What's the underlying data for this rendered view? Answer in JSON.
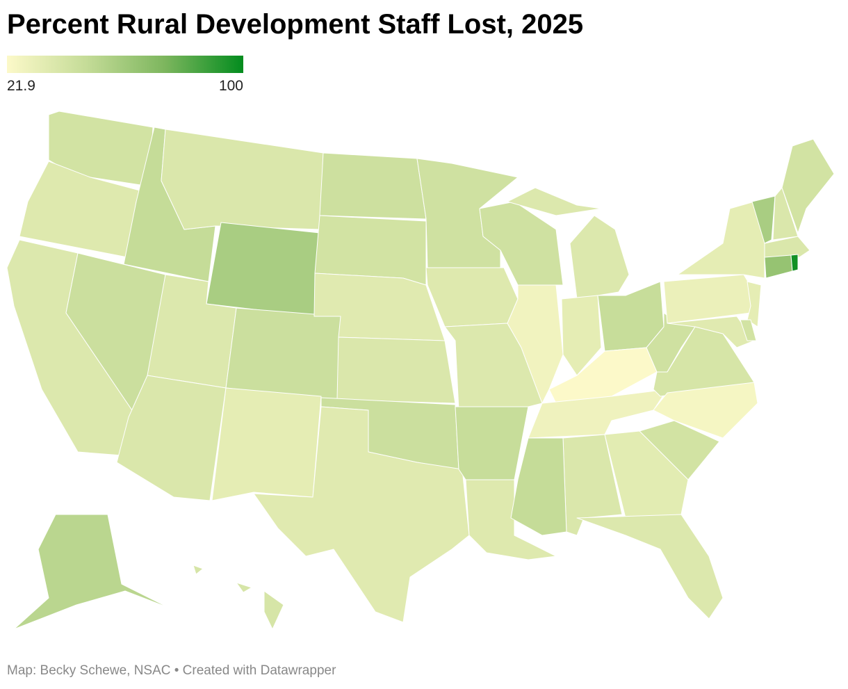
{
  "chart_data": {
    "type": "choropleth",
    "title": "Percent Rural Development Staff Lost, 2025",
    "colorbar": {
      "range": [
        21.9,
        100
      ],
      "colors": [
        "#fcf9c9",
        "#c5dc98",
        "#7db65e",
        "#038c1e"
      ]
    },
    "values": [
      42,
      36,
      37,
      45,
      48,
      38,
      58,
      37,
      38,
      45,
      33,
      44,
      42,
      35,
      38,
      45,
      35,
      43,
      36,
      37,
      47,
      36,
      43,
      27,
      37,
      33,
      47,
      22,
      28,
      43,
      40,
      25,
      42,
      34,
      38,
      48,
      37,
      30,
      33,
      33,
      35,
      42,
      58,
      38,
      42,
      38,
      65,
      97,
      52,
      40
    ],
    "source": "Map: Becky Schewe, NSAC • Created with Datawrapper"
  }
}
